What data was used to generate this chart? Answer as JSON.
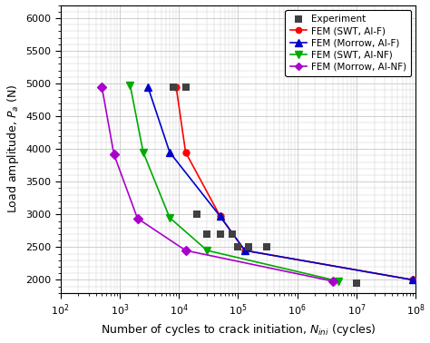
{
  "xlabel": "Number of cycles to crack initiation, $N_{ini}$ (cycles)",
  "ylabel": "Load amplitude, $P_a$ (N)",
  "xlim": [
    100,
    100000000.0
  ],
  "ylim": [
    1800,
    6200
  ],
  "yticks": [
    2000,
    2500,
    3000,
    3500,
    4000,
    4500,
    5000,
    5500,
    6000
  ],
  "background_color": "#ffffff",
  "grid_color": "#c8c8c8",
  "experiment": {
    "x": [
      8000,
      13000,
      20000,
      30000,
      50000,
      80000,
      100000,
      150000,
      300000,
      10000000
    ],
    "y": [
      4950,
      4950,
      3000,
      2700,
      2700,
      2700,
      2500,
      2500,
      2500,
      1950
    ],
    "color": "#404040",
    "marker": "s",
    "markersize": 6,
    "label": "Experiment"
  },
  "fem_swt_alf": {
    "x": [
      9000,
      13000,
      50000,
      130000,
      90000000.0
    ],
    "y": [
      4950,
      3950,
      2970,
      2450,
      2000
    ],
    "color": "#ff0000",
    "marker": "o",
    "markersize": 5,
    "label": "FEM (SWT, AI-F)"
  },
  "fem_morrow_alf": {
    "x": [
      3000,
      7000,
      50000,
      130000,
      90000000.0
    ],
    "y": [
      4950,
      3950,
      2970,
      2450,
      2000
    ],
    "color": "#0000cc",
    "marker": "^",
    "markersize": 6,
    "label": "FEM (Morrow, AI-F)"
  },
  "fem_swt_alnf": {
    "x": [
      1500,
      2500,
      7000,
      30000,
      5000000.0
    ],
    "y": [
      4980,
      3950,
      2950,
      2450,
      1980
    ],
    "color": "#00aa00",
    "marker": "v",
    "markersize": 6,
    "label": "FEM (SWT, AI-NF)"
  },
  "fem_morrow_alnf": {
    "x": [
      500,
      800,
      2000,
      13000,
      4000000.0
    ],
    "y": [
      4950,
      3920,
      2940,
      2450,
      1980
    ],
    "color": "#aa00cc",
    "marker": "D",
    "markersize": 5,
    "label": "FEM (Morrow, AI-NF)"
  }
}
